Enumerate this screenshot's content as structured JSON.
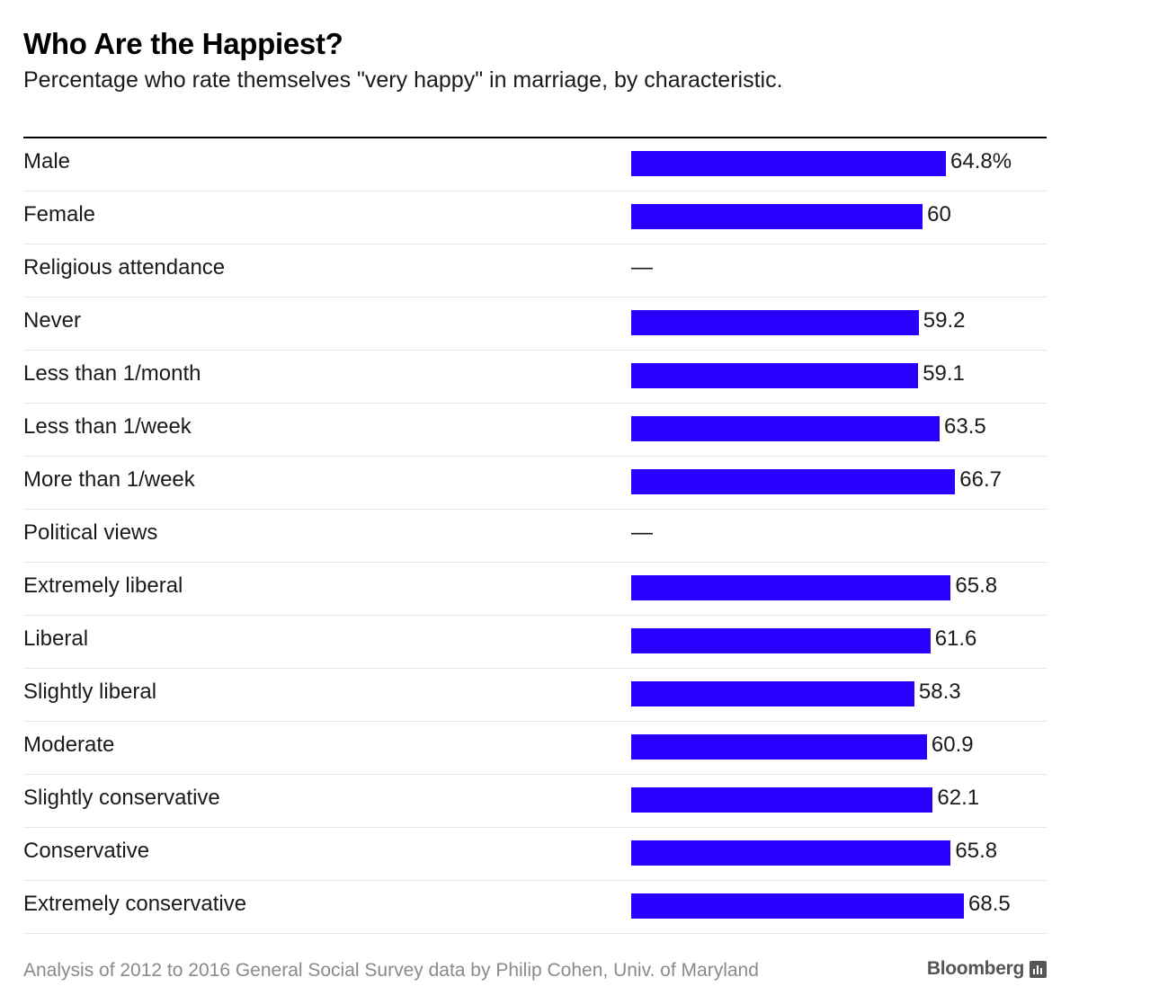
{
  "title": "Who Are the Happiest?",
  "subtitle": "Percentage who rate themselves \"very happy\" in marriage, by characteristic.",
  "source": "Analysis of 2012 to 2016 General Social Survey data by Philip Cohen, Univ. of Maryland",
  "brand": "Bloomberg",
  "colors": {
    "bar": "#2800ff"
  },
  "chart_data": {
    "type": "bar",
    "orientation": "horizontal",
    "title": "Who Are the Happiest?",
    "subtitle": "Percentage who rate themselves \"very happy\" in marriage, by characteristic.",
    "xlim": [
      0,
      100
    ],
    "grid": false,
    "rows": [
      {
        "label": "Male",
        "value": 64.8,
        "display": "64.8%"
      },
      {
        "label": "Female",
        "value": 60,
        "display": "60"
      },
      {
        "label": "Religious attendance",
        "value": null,
        "display": "—"
      },
      {
        "label": "Never",
        "value": 59.2,
        "display": "59.2"
      },
      {
        "label": "Less than 1/month",
        "value": 59.1,
        "display": "59.1"
      },
      {
        "label": "Less than 1/week",
        "value": 63.5,
        "display": "63.5"
      },
      {
        "label": "More than 1/week",
        "value": 66.7,
        "display": "66.7"
      },
      {
        "label": "Political views",
        "value": null,
        "display": "—"
      },
      {
        "label": "Extremely liberal",
        "value": 65.8,
        "display": "65.8"
      },
      {
        "label": "Liberal",
        "value": 61.6,
        "display": "61.6"
      },
      {
        "label": "Slightly liberal",
        "value": 58.3,
        "display": "58.3"
      },
      {
        "label": "Moderate",
        "value": 60.9,
        "display": "60.9"
      },
      {
        "label": "Slightly conservative",
        "value": 62.1,
        "display": "62.1"
      },
      {
        "label": "Conservative",
        "value": 65.8,
        "display": "65.8"
      },
      {
        "label": "Extremely conservative",
        "value": 68.5,
        "display": "68.5"
      }
    ]
  }
}
